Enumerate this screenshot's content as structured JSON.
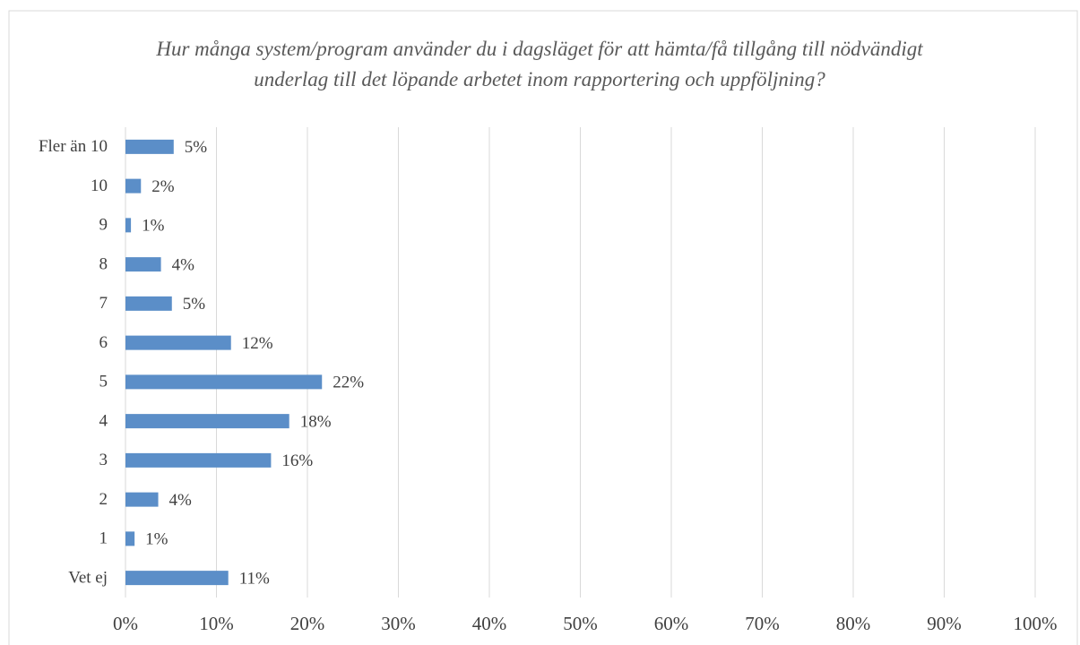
{
  "chart_data": {
    "type": "hbar",
    "title": "Hur många system/program använder du i dagsläget för att hämta/få tillgång till nödvändigt underlag till det löpande arbetet inom rapportering och uppföljning?",
    "categories": [
      "Vet ej",
      "1",
      "2",
      "3",
      "4",
      "5",
      "6",
      "7",
      "8",
      "9",
      "10",
      "Fler än 10"
    ],
    "values": [
      11.3,
      1.0,
      3.6,
      16.0,
      18.0,
      21.6,
      11.6,
      5.1,
      3.9,
      0.6,
      1.7,
      5.3
    ],
    "value_labels": [
      "11%",
      "1%",
      "4%",
      "16%",
      "18%",
      "22%",
      "12%",
      "5%",
      "4%",
      "1%",
      "2%",
      "5%"
    ],
    "color": "#5b8ec8",
    "xlim": [
      0,
      100
    ],
    "xticks": [
      {
        "value": 0,
        "label": "0%"
      },
      {
        "value": 10,
        "label": "10%"
      },
      {
        "value": 20,
        "label": "20%"
      },
      {
        "value": 30,
        "label": "30%"
      },
      {
        "value": 40,
        "label": "40%"
      },
      {
        "value": 50,
        "label": "50%"
      },
      {
        "value": 60,
        "label": "60%"
      },
      {
        "value": 70,
        "label": "70%"
      },
      {
        "value": 80,
        "label": "80%"
      },
      {
        "value": 90,
        "label": "90%"
      },
      {
        "value": 100,
        "label": "100%"
      }
    ],
    "grid": true
  }
}
